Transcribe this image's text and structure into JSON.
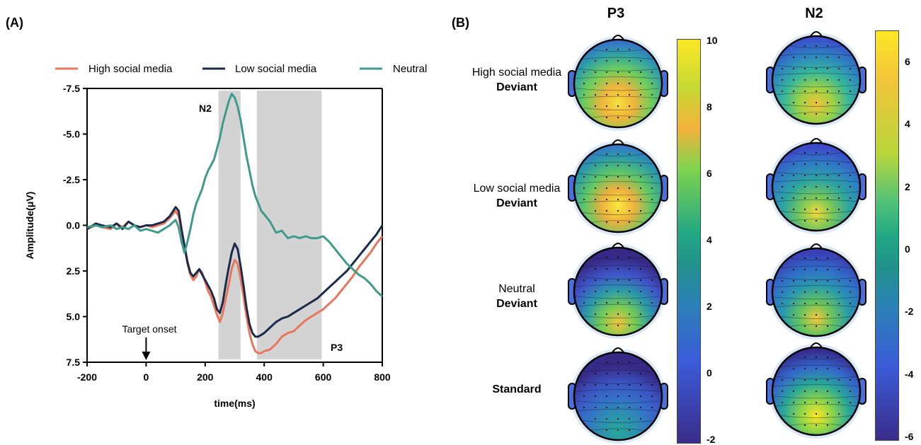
{
  "panel_a_label": "(A)",
  "panel_b_label": "(B)",
  "chart_data": {
    "type": "line",
    "xlabel": "time(ms)",
    "ylabel": "Amplitude(μV)",
    "xlim": [
      -200,
      800
    ],
    "ylim": [
      -7.5,
      7.5
    ],
    "y_inverted": true,
    "xticks": [
      "-200",
      "0",
      "200",
      "400",
      "600",
      "800"
    ],
    "yticks": [
      "-7.5",
      "-5.0",
      "-2.5",
      "0.0",
      "2.5",
      "5.0",
      "7.5"
    ],
    "legend_position": "top",
    "annotations": {
      "n2": "N2",
      "p3": "P3",
      "onset": "Target onset"
    },
    "shaded_windows": [
      [
        245,
        320
      ],
      [
        375,
        595
      ]
    ],
    "series": [
      {
        "name": "High social media",
        "color": "#e8765d",
        "x": [
          -200,
          -170,
          -150,
          -120,
          -100,
          -80,
          -60,
          -40,
          -20,
          0,
          20,
          40,
          60,
          80,
          100,
          110,
          120,
          130,
          140,
          150,
          160,
          170,
          180,
          190,
          200,
          210,
          220,
          230,
          240,
          250,
          260,
          270,
          280,
          290,
          300,
          310,
          320,
          330,
          340,
          350,
          360,
          370,
          380,
          390,
          400,
          420,
          440,
          460,
          480,
          500,
          520,
          540,
          560,
          580,
          600,
          620,
          640,
          660,
          680,
          700,
          720,
          740,
          760,
          780,
          800
        ],
        "y": [
          0.2,
          0.0,
          0.1,
          0.2,
          -0.1,
          0.1,
          -0.2,
          0.0,
          0.1,
          0.0,
          0.1,
          0.0,
          -0.1,
          -0.4,
          -0.8,
          -0.5,
          0.3,
          1.2,
          2.1,
          2.7,
          3.0,
          2.8,
          2.4,
          2.6,
          3.1,
          3.6,
          3.9,
          4.4,
          4.9,
          5.3,
          4.8,
          4.0,
          3.2,
          2.4,
          1.9,
          2.1,
          2.9,
          3.9,
          5.0,
          5.9,
          6.5,
          6.9,
          7.0,
          7.0,
          6.9,
          6.8,
          6.5,
          6.1,
          5.9,
          5.8,
          5.5,
          5.2,
          5.0,
          4.8,
          4.6,
          4.3,
          4.0,
          3.6,
          3.2,
          2.8,
          2.3,
          1.9,
          1.5,
          1.0,
          0.6
        ]
      },
      {
        "name": "Low social media",
        "color": "#1b2a4a",
        "x": [
          -200,
          -170,
          -150,
          -120,
          -100,
          -80,
          -60,
          -40,
          -20,
          0,
          20,
          40,
          60,
          80,
          100,
          110,
          120,
          130,
          140,
          150,
          160,
          170,
          180,
          190,
          200,
          210,
          220,
          230,
          240,
          250,
          260,
          270,
          280,
          290,
          300,
          310,
          320,
          330,
          340,
          350,
          360,
          370,
          380,
          390,
          400,
          420,
          440,
          460,
          480,
          500,
          520,
          540,
          560,
          580,
          600,
          620,
          640,
          660,
          680,
          700,
          720,
          740,
          760,
          780,
          800
        ],
        "y": [
          0.2,
          -0.1,
          0.0,
          0.1,
          -0.1,
          0.2,
          -0.2,
          0.0,
          0.1,
          0.0,
          0.0,
          -0.1,
          -0.2,
          -0.5,
          -1.0,
          -0.8,
          0.2,
          1.1,
          2.0,
          2.6,
          2.8,
          2.6,
          2.4,
          2.7,
          3.0,
          3.3,
          3.6,
          4.0,
          4.6,
          4.8,
          4.2,
          3.2,
          2.3,
          1.5,
          1.0,
          1.3,
          2.2,
          3.3,
          4.5,
          5.4,
          5.9,
          6.1,
          6.1,
          6.0,
          5.9,
          5.6,
          5.3,
          5.1,
          5.0,
          4.8,
          4.6,
          4.4,
          4.2,
          4.0,
          3.7,
          3.4,
          3.1,
          2.8,
          2.5,
          2.1,
          1.7,
          1.3,
          0.9,
          0.5,
          0.0
        ]
      },
      {
        "name": "Neutral",
        "color": "#3e9a8b",
        "x": [
          -200,
          -170,
          -150,
          -120,
          -100,
          -80,
          -60,
          -40,
          -20,
          0,
          20,
          40,
          60,
          80,
          100,
          110,
          120,
          130,
          140,
          150,
          160,
          170,
          180,
          190,
          200,
          210,
          220,
          230,
          240,
          250,
          260,
          270,
          280,
          290,
          300,
          310,
          320,
          330,
          340,
          350,
          360,
          370,
          380,
          390,
          400,
          420,
          440,
          460,
          480,
          500,
          520,
          540,
          560,
          580,
          600,
          620,
          640,
          660,
          680,
          700,
          720,
          740,
          760,
          780,
          800
        ],
        "y": [
          0.1,
          0.0,
          0.1,
          0.0,
          0.2,
          0.1,
          0.2,
          0.0,
          0.3,
          0.2,
          0.3,
          0.4,
          0.2,
          0.0,
          -0.3,
          0.1,
          0.9,
          1.5,
          0.9,
          0.2,
          -0.6,
          -1.2,
          -1.6,
          -2.0,
          -2.6,
          -3.0,
          -3.3,
          -3.6,
          -4.2,
          -4.8,
          -5.6,
          -6.2,
          -6.8,
          -7.2,
          -7.0,
          -6.5,
          -5.8,
          -4.8,
          -3.8,
          -3.0,
          -2.2,
          -1.6,
          -1.2,
          -0.8,
          -0.6,
          -0.2,
          0.4,
          0.3,
          0.7,
          0.6,
          0.7,
          0.6,
          0.7,
          0.7,
          0.6,
          0.9,
          1.3,
          1.7,
          2.1,
          2.4,
          2.7,
          2.9,
          3.2,
          3.6,
          3.9
        ]
      }
    ]
  },
  "topo": {
    "col_p3_title": "P3",
    "col_n2_title": "N2",
    "rows": [
      {
        "line1": "High social media",
        "line2": "Deviant"
      },
      {
        "line1": "Low social media",
        "line2": "Deviant"
      },
      {
        "line1": "Neutral",
        "line2": "Deviant"
      },
      {
        "line1": "",
        "line2": "Standard"
      }
    ],
    "colorbar_p3_ticks": [
      "10",
      "8",
      "6",
      "4",
      "2",
      "0",
      "-2"
    ],
    "colorbar_n2_ticks": [
      "6",
      "4",
      "2",
      "0",
      "-2",
      "-4",
      "-6"
    ]
  }
}
